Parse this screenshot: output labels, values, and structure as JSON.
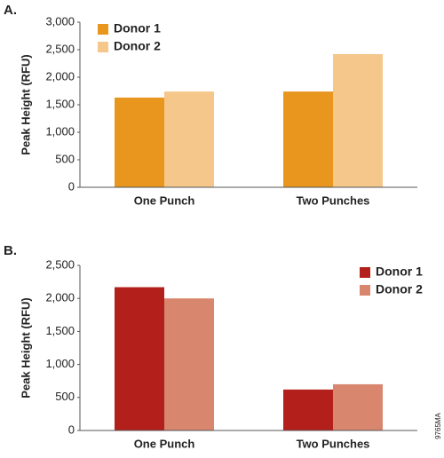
{
  "code": "9765MA",
  "chart_data": [
    {
      "type": "bar",
      "label": "A.",
      "ylabel": "Peak Height (RFU)",
      "categories": [
        "One Punch",
        "Two Punches"
      ],
      "series": [
        {
          "name": "Donor 1",
          "color": "#e8961e",
          "values": [
            1630,
            1740
          ]
        },
        {
          "name": "Donor 2",
          "color": "#f5c78a",
          "values": [
            1740,
            2420
          ]
        }
      ],
      "ylim": [
        0,
        3000
      ],
      "yticks": [
        0,
        500,
        {
          "value": 1000,
          "label": "1,000"
        },
        {
          "value": 1500,
          "label": "1,500"
        },
        {
          "value": 2000,
          "label": "2,000"
        },
        {
          "value": 2500,
          "label": "2,500"
        },
        {
          "value": 3000,
          "label": "3,000"
        }
      ],
      "legend": "upper left"
    },
    {
      "type": "bar",
      "label": "B.",
      "ylabel": "Peak Height (RFU)",
      "categories": [
        "One Punch",
        "Two Punches"
      ],
      "series": [
        {
          "name": "Donor 1",
          "color": "#b3201b",
          "values": [
            2170,
            620
          ]
        },
        {
          "name": "Donor 2",
          "color": "#d8866e",
          "values": [
            2000,
            700
          ]
        }
      ],
      "ylim": [
        0,
        2500
      ],
      "yticks": [
        0,
        500,
        {
          "value": 1000,
          "label": "1,000"
        },
        {
          "value": 1500,
          "label": "1,500"
        },
        {
          "value": 2000,
          "label": "2,000"
        },
        {
          "value": 2500,
          "label": "2,500"
        }
      ],
      "legend": "upper right"
    }
  ]
}
